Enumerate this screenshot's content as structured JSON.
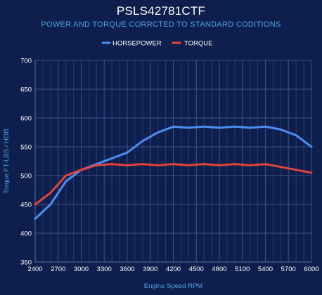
{
  "chart_data": {
    "type": "line",
    "title": "PSLS42781CTF",
    "subtitle": "POWER AND TORQUE CORRCTED TO STANDARD CODITIONS",
    "xlabel": "Engine Speed RPM",
    "ylabel": "Torque FT-LBS / HOR",
    "xlim": [
      2400,
      6000
    ],
    "ylim": [
      350,
      700
    ],
    "x_ticks": [
      2400,
      2700,
      3000,
      3300,
      3600,
      3900,
      4200,
      4500,
      4800,
      5100,
      5400,
      5700,
      6000
    ],
    "y_ticks": [
      350,
      400,
      450,
      500,
      550,
      600,
      650,
      700
    ],
    "grid": true,
    "legend_position": "top-center",
    "x": [
      2400,
      2600,
      2800,
      3000,
      3200,
      3400,
      3600,
      3800,
      4000,
      4200,
      4400,
      4600,
      4800,
      5000,
      5200,
      5400,
      5600,
      5800,
      6000
    ],
    "series": [
      {
        "name": "HORSEPOWER",
        "color": "#4a8ef0",
        "values": [
          425,
          450,
          490,
          510,
          520,
          530,
          540,
          560,
          575,
          585,
          583,
          585,
          583,
          585,
          583,
          585,
          580,
          570,
          550
        ]
      },
      {
        "name": "TORQUE",
        "color": "#e0443a",
        "values": [
          450,
          470,
          500,
          510,
          518,
          520,
          518,
          520,
          518,
          520,
          518,
          520,
          518,
          520,
          518,
          520,
          515,
          510,
          505
        ]
      }
    ]
  }
}
